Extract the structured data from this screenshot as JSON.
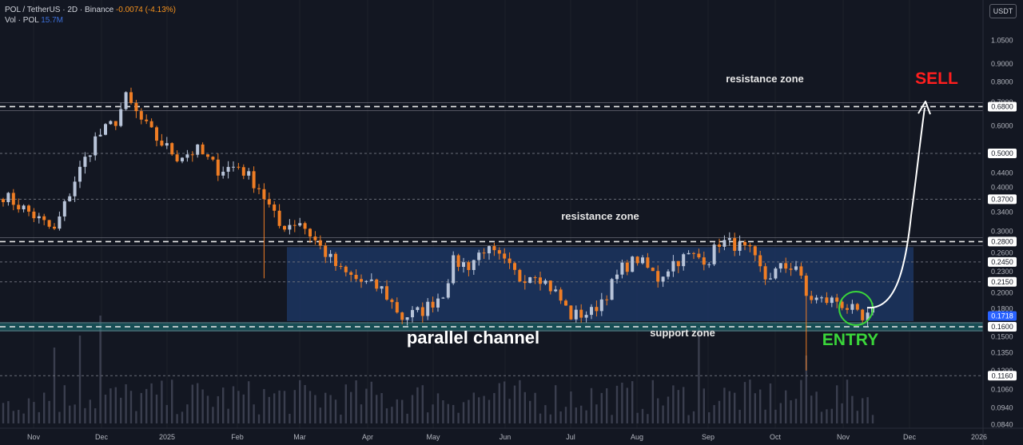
{
  "header": {
    "symbol": "POL / TetherUS · 2D · Binance",
    "change": "-0.0074 (-4.13%)",
    "vol_label": "Vol · POL",
    "vol_value": "15.7M"
  },
  "unit_label": "USDT",
  "colors": {
    "background": "#131722",
    "up": "#b8c4d9",
    "down": "#ef7d24",
    "channel": "#1c3560",
    "support_band": "#1b7a7e",
    "sell": "#ff1e1e",
    "entry": "#3ad63a"
  },
  "chart_data": {
    "type": "candlestick",
    "symbol": "POL/USDT",
    "timeframe": "2D",
    "exchange": "Binance",
    "last_price": 0.1718,
    "y_scale": "log",
    "ylim": [
      0.078,
      1.15
    ],
    "y_ticks": [
      1.05,
      0.9,
      0.8,
      0.7,
      0.6,
      0.44,
      0.4,
      0.34,
      0.3,
      0.26,
      0.23,
      0.2,
      0.18,
      0.15,
      0.135,
      0.12,
      0.106,
      0.094,
      0.084
    ],
    "price_labels": [
      {
        "value": 0.68,
        "text": "0.6800"
      },
      {
        "value": 0.5,
        "text": "0.5000"
      },
      {
        "value": 0.37,
        "text": "0.3700"
      },
      {
        "value": 0.28,
        "text": "0.2800"
      },
      {
        "value": 0.245,
        "text": "0.2450"
      },
      {
        "value": 0.215,
        "text": "0.2150"
      },
      {
        "value": 0.1718,
        "text": "0.1718"
      },
      {
        "value": 0.16,
        "text": "0.1600"
      },
      {
        "value": 0.116,
        "text": "0.1160"
      }
    ],
    "x_labels": [
      "Nov",
      "Dec",
      "2025",
      "Feb",
      "Mar",
      "Apr",
      "May",
      "Jun",
      "Jul",
      "Aug",
      "Sep",
      "Oct",
      "Nov",
      "Dec",
      "2026"
    ],
    "anchors": [
      {
        "t": 0,
        "p": 0.38
      },
      {
        "t": 5,
        "p": 0.34
      },
      {
        "t": 10,
        "p": 0.3
      },
      {
        "t": 14,
        "p": 0.42
      },
      {
        "t": 18,
        "p": 0.55
      },
      {
        "t": 22,
        "p": 0.62
      },
      {
        "t": 24,
        "p": 0.72
      },
      {
        "t": 27,
        "p": 0.62
      },
      {
        "t": 30,
        "p": 0.55
      },
      {
        "t": 34,
        "p": 0.49
      },
      {
        "t": 38,
        "p": 0.51
      },
      {
        "t": 42,
        "p": 0.45
      },
      {
        "t": 46,
        "p": 0.46
      },
      {
        "t": 50,
        "p": 0.4
      },
      {
        "t": 54,
        "p": 0.31
      },
      {
        "t": 58,
        "p": 0.32
      },
      {
        "t": 62,
        "p": 0.27
      },
      {
        "t": 66,
        "p": 0.23
      },
      {
        "t": 70,
        "p": 0.215
      },
      {
        "t": 74,
        "p": 0.205
      },
      {
        "t": 78,
        "p": 0.17
      },
      {
        "t": 82,
        "p": 0.178
      },
      {
        "t": 86,
        "p": 0.2
      },
      {
        "t": 88,
        "p": 0.245
      },
      {
        "t": 91,
        "p": 0.24
      },
      {
        "t": 94,
        "p": 0.268
      },
      {
        "t": 97,
        "p": 0.25
      },
      {
        "t": 101,
        "p": 0.22
      },
      {
        "t": 104,
        "p": 0.23
      },
      {
        "t": 108,
        "p": 0.2
      },
      {
        "t": 111,
        "p": 0.172
      },
      {
        "t": 115,
        "p": 0.176
      },
      {
        "t": 118,
        "p": 0.2
      },
      {
        "t": 121,
        "p": 0.235
      },
      {
        "t": 124,
        "p": 0.25
      },
      {
        "t": 128,
        "p": 0.22
      },
      {
        "t": 131,
        "p": 0.245
      },
      {
        "t": 134,
        "p": 0.255
      },
      {
        "t": 138,
        "p": 0.25
      },
      {
        "t": 140,
        "p": 0.28
      },
      {
        "t": 143,
        "p": 0.275
      },
      {
        "t": 146,
        "p": 0.26
      },
      {
        "t": 149,
        "p": 0.22
      },
      {
        "t": 152,
        "p": 0.235
      },
      {
        "t": 155,
        "p": 0.24
      },
      {
        "t": 157,
        "p": 0.195
      },
      {
        "t": 160,
        "p": 0.19
      },
      {
        "t": 163,
        "p": 0.19
      },
      {
        "t": 166,
        "p": 0.178
      },
      {
        "t": 168,
        "p": 0.165
      },
      {
        "t": 170,
        "p": 0.175
      }
    ],
    "wick_spikes": [
      {
        "t": 51,
        "low": 0.22
      },
      {
        "t": 157,
        "low": 0.12
      }
    ],
    "horizontal_levels": [
      {
        "value": 0.68,
        "style": "dashed",
        "name": "resistance-top"
      },
      {
        "value": 0.5,
        "style": "dotted"
      },
      {
        "value": 0.37,
        "style": "dotted"
      },
      {
        "value": 0.28,
        "style": "dashed",
        "name": "resistance-mid"
      },
      {
        "value": 0.245,
        "style": "dotted"
      },
      {
        "value": 0.215,
        "style": "dotted"
      },
      {
        "value": 0.16,
        "style": "dashed",
        "name": "support"
      },
      {
        "value": 0.116,
        "style": "dotted"
      }
    ],
    "channel": {
      "t_start": 58,
      "t_end": 189,
      "top": 0.27,
      "bottom": 0.166
    },
    "support_band": {
      "top": 0.165,
      "bottom": 0.155
    }
  },
  "annotations": {
    "resistance_top": "resistance zone",
    "resistance_mid": "resistance zone",
    "support": "support zone",
    "channel": "parallel channel",
    "sell": "SELL",
    "entry": "ENTRY"
  }
}
